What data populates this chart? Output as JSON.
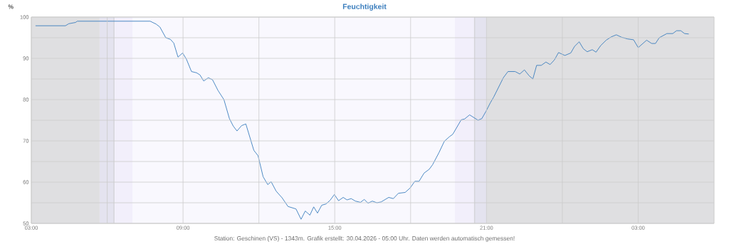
{
  "chart_data": {
    "type": "line",
    "title": "Feuchtigkeit",
    "ylabel": "%",
    "annotations": [
      "Station: Geschinen (VS) - 1343m. Grafik erstellt: 30.04.2026 - 05:00 Uhr. Daten werden automatisch gemessen!"
    ],
    "x": [
      "2026-04-29T03:10",
      "2026-04-29T04:21",
      "2026-04-29T04:29",
      "2026-04-29T04:45",
      "2026-04-29T04:49",
      "2026-04-29T07:42",
      "2026-04-29T07:56",
      "2026-04-29T08:05",
      "2026-04-29T08:19",
      "2026-04-29T08:30",
      "2026-04-29T08:38",
      "2026-04-29T08:48",
      "2026-04-29T08:59",
      "2026-04-29T09:08",
      "2026-04-29T09:20",
      "2026-04-29T09:32",
      "2026-04-29T09:40",
      "2026-04-29T09:49",
      "2026-04-29T10:00",
      "2026-04-29T10:10",
      "2026-04-29T10:23",
      "2026-04-29T10:37",
      "2026-04-29T10:50",
      "2026-04-29T10:59",
      "2026-04-29T11:08",
      "2026-04-29T11:19",
      "2026-04-29T11:29",
      "2026-04-29T11:48",
      "2026-04-29T11:58",
      "2026-04-29T12:10",
      "2026-04-29T12:21",
      "2026-04-29T12:29",
      "2026-04-29T12:41",
      "2026-04-29T12:55",
      "2026-04-29T13:09",
      "2026-04-29T13:28",
      "2026-04-29T13:40",
      "2026-04-29T13:50",
      "2026-04-29T14:01",
      "2026-04-29T14:10",
      "2026-04-29T14:19",
      "2026-04-29T14:29",
      "2026-04-29T14:39",
      "2026-04-29T14:49",
      "2026-04-29T14:59",
      "2026-04-29T15:09",
      "2026-04-29T15:20",
      "2026-04-29T15:29",
      "2026-04-29T15:39",
      "2026-04-29T15:49",
      "2026-04-29T16:01",
      "2026-04-29T16:10",
      "2026-04-29T16:19",
      "2026-04-29T16:29",
      "2026-04-29T16:40",
      "2026-04-29T16:50",
      "2026-04-29T17:08",
      "2026-04-29T17:19",
      "2026-04-29T17:31",
      "2026-04-29T17:47",
      "2026-04-29T17:59",
      "2026-04-29T18:10",
      "2026-04-29T18:20",
      "2026-04-29T18:32",
      "2026-04-29T18:44",
      "2026-04-29T18:52",
      "2026-04-29T19:07",
      "2026-04-29T19:20",
      "2026-04-29T19:32",
      "2026-04-29T19:40",
      "2026-04-29T20:00",
      "2026-04-29T20:08",
      "2026-04-29T20:20",
      "2026-04-29T20:40",
      "2026-04-29T20:49",
      "2026-04-29T20:59",
      "2026-04-29T21:09",
      "2026-04-29T21:17",
      "2026-04-29T21:40",
      "2026-04-29T21:51",
      "2026-04-29T22:08",
      "2026-04-29T22:19",
      "2026-04-29T22:30",
      "2026-04-29T22:41",
      "2026-04-29T22:50",
      "2026-04-29T22:59",
      "2026-04-29T23:10",
      "2026-04-29T23:21",
      "2026-04-29T23:31",
      "2026-04-29T23:41",
      "2026-04-29T23:51",
      "2026-04-30T00:06",
      "2026-04-30T00:20",
      "2026-04-30T00:29",
      "2026-04-30T00:40",
      "2026-04-30T00:50",
      "2026-04-30T00:59",
      "2026-04-30T01:11",
      "2026-04-30T01:20",
      "2026-04-30T01:31",
      "2026-04-30T01:44",
      "2026-04-30T01:56",
      "2026-04-30T02:08",
      "2026-04-30T02:21",
      "2026-04-30T02:35",
      "2026-04-30T02:49",
      "2026-04-30T03:00",
      "2026-04-30T03:20",
      "2026-04-30T03:32",
      "2026-04-30T03:41",
      "2026-04-30T03:50",
      "2026-04-30T04:08",
      "2026-04-30T04:22",
      "2026-04-30T04:31",
      "2026-04-30T04:41",
      "2026-04-30T04:50",
      "2026-04-30T05:00"
    ],
    "series": [
      {
        "color": "#3a7dbd",
        "values": [
          97.9,
          97.9,
          98.4,
          98.7,
          99.0,
          99.0,
          98.3,
          97.6,
          95.0,
          94.6,
          93.7,
          90.3,
          91.3,
          89.8,
          86.8,
          86.5,
          86.0,
          84.5,
          85.3,
          84.8,
          82.2,
          80.0,
          75.4,
          73.6,
          72.4,
          73.7,
          74.1,
          67.7,
          66.4,
          61.3,
          59.4,
          60.1,
          57.8,
          56.2,
          54.1,
          53.5,
          51.0,
          53.0,
          52.0,
          54.0,
          52.5,
          54.4,
          54.7,
          55.6,
          57.0,
          55.5,
          56.3,
          55.7,
          56.0,
          55.4,
          55.1,
          55.8,
          54.9,
          55.4,
          55.0,
          55.2,
          56.3,
          56.0,
          57.3,
          57.5,
          58.6,
          60.2,
          60.2,
          62.2,
          63.1,
          64.2,
          67.1,
          69.9,
          71.0,
          71.6,
          75.1,
          75.3,
          76.3,
          75.0,
          75.4,
          77.2,
          79.2,
          80.6,
          85.3,
          86.8,
          86.8,
          86.2,
          87.2,
          85.8,
          85.0,
          88.3,
          88.3,
          89.1,
          88.5,
          89.6,
          91.4,
          90.7,
          91.3,
          92.9,
          94.0,
          92.3,
          91.6,
          92.1,
          91.5,
          93.1,
          94.4,
          95.2,
          95.7,
          95.1,
          94.7,
          94.5,
          92.6,
          94.4,
          93.6,
          93.6,
          95.0,
          96.0,
          96.0,
          96.7,
          96.7,
          96.0,
          95.9
        ]
      }
    ],
    "xlim": [
      "2026-04-29T03:00",
      "2026-04-30T06:00"
    ],
    "ylim": [
      50,
      100
    ],
    "xticks": [
      {
        "value": "2026-04-29T03:00",
        "label": "03:00"
      },
      {
        "value": "2026-04-29T06:00",
        "label": null
      },
      {
        "value": "2026-04-29T09:00",
        "label": "09:00"
      },
      {
        "value": "2026-04-29T12:00",
        "label": null
      },
      {
        "value": "2026-04-29T15:00",
        "label": "15:00"
      },
      {
        "value": "2026-04-29T18:00",
        "label": null
      },
      {
        "value": "2026-04-29T21:00",
        "label": "21:00"
      },
      {
        "value": "2026-04-30T00:00",
        "label": null
      },
      {
        "value": "2026-04-30T03:00",
        "label": "03:00"
      }
    ],
    "yticks": [
      50,
      {
        "value": 55,
        "label": null
      },
      60,
      {
        "value": 65,
        "label": null
      },
      70,
      {
        "value": 75,
        "label": null
      },
      80,
      {
        "value": 85,
        "label": null
      },
      90,
      {
        "value": 95,
        "label": null
      },
      100
    ],
    "bands": [
      {
        "axis": "x",
        "from": "2026-04-29T03:00",
        "to": "2026-04-29T05:42",
        "color": "#dfdfe1"
      },
      {
        "axis": "x",
        "from": "2026-04-29T05:42",
        "to": "2026-04-29T06:18",
        "color": "#e4e3ef"
      },
      {
        "axis": "x",
        "from": "2026-04-29T06:18",
        "to": "2026-04-29T07:00",
        "color": "#f2effb"
      },
      {
        "axis": "x",
        "from": "2026-04-29T19:45",
        "to": "2026-04-29T20:30",
        "color": "#f2effb"
      },
      {
        "axis": "x",
        "from": "2026-04-29T20:30",
        "to": "2026-04-29T21:00",
        "color": "#e4e3ef"
      },
      {
        "axis": "x",
        "from": "2026-04-29T21:00",
        "to": "2026-04-30T06:00",
        "color": "#dfdfe1"
      }
    ],
    "ref_lines": [
      {
        "axis": "x",
        "value": "2026-04-29T06:16",
        "color": "#cccccc"
      },
      {
        "axis": "x",
        "value": "2026-04-29T20:32",
        "color": "#cccccc"
      }
    ],
    "grid": true,
    "marker": "none",
    "line_style": "solid"
  }
}
